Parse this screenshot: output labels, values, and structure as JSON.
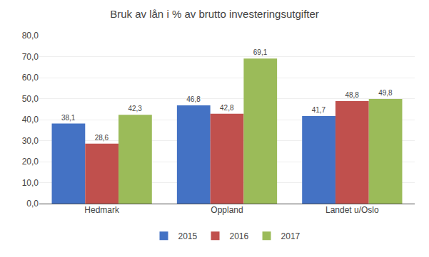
{
  "chart_data": {
    "type": "bar",
    "title": "Bruk av lån i % av brutto investeringsutgifter",
    "categories": [
      "Hedmark",
      "Oppland",
      "Landet u/Oslo"
    ],
    "series": [
      {
        "name": "2015",
        "color": "#4472C4",
        "values": [
          38.1,
          46.8,
          41.7
        ],
        "value_labels": [
          "38,1",
          "46,8",
          "41,7"
        ]
      },
      {
        "name": "2016",
        "color": "#C0504D",
        "values": [
          28.6,
          42.8,
          48.8
        ],
        "value_labels": [
          "28,6",
          "42,8",
          "48,8"
        ]
      },
      {
        "name": "2017",
        "color": "#9BBB59",
        "values": [
          42.3,
          69.1,
          49.8
        ],
        "value_labels": [
          "42,3",
          "69,1",
          "49,8"
        ]
      }
    ],
    "ylim": [
      0,
      80
    ],
    "yticks": [
      {
        "value": 0,
        "label": "0,0"
      },
      {
        "value": 10,
        "label": "10,0"
      },
      {
        "value": 20,
        "label": "20,0"
      },
      {
        "value": 30,
        "label": "30,0"
      },
      {
        "value": 40,
        "label": "40,0"
      },
      {
        "value": 50,
        "label": "50,0"
      },
      {
        "value": 60,
        "label": "60,0"
      },
      {
        "value": 70,
        "label": "70,0"
      },
      {
        "value": 80,
        "label": "80,0"
      }
    ],
    "grid": true,
    "legend": "bottom",
    "data_labels": true
  }
}
